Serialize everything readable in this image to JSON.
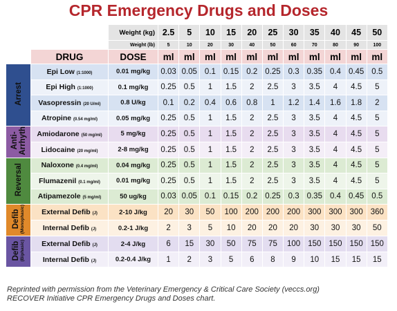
{
  "title": "CPR Emergency Drugs and Doses",
  "header": {
    "weight_kg_label": "Weight (kg)",
    "weight_kg": [
      "2.5",
      "5",
      "10",
      "15",
      "20",
      "25",
      "30",
      "35",
      "40",
      "45",
      "50"
    ],
    "weight_lb_label": "Weight (lb)",
    "weight_lb": [
      "5",
      "10",
      "20",
      "30",
      "40",
      "50",
      "60",
      "70",
      "80",
      "90",
      "100"
    ],
    "drug_label": "DRUG",
    "dose_label": "DOSE",
    "unit_labels": [
      "ml",
      "ml",
      "ml",
      "ml",
      "ml",
      "ml",
      "ml",
      "ml",
      "ml",
      "ml",
      "ml"
    ]
  },
  "groups": [
    {
      "label_lines": [
        "Arrest"
      ],
      "rows": [
        {
          "drug": "Epi Low",
          "conc": "(1:1000)",
          "dose": "0.01 mg/kg",
          "doses": [
            "0.03",
            "0.05",
            "0.1",
            "0.15",
            "0.2",
            "0.25",
            "0.3",
            "0.35",
            "0.4",
            "0.45",
            "0.5"
          ]
        },
        {
          "drug": "Epi High",
          "conc": "(1:1000)",
          "dose": "0.1 mg/kg",
          "doses": [
            "0.25",
            "0.5",
            "1",
            "1.5",
            "2",
            "2.5",
            "3",
            "3.5",
            "4",
            "4.5",
            "5"
          ]
        },
        {
          "drug": "Vasopressin",
          "conc": "(20 U/ml)",
          "dose": "0.8 U/kg",
          "doses": [
            "0.1",
            "0.2",
            "0.4",
            "0.6",
            "0.8",
            "1",
            "1.2",
            "1.4",
            "1.6",
            "1.8",
            "2"
          ]
        },
        {
          "drug": "Atropine",
          "conc": "(0.54 mg/ml)",
          "dose": "0.05 mg/kg",
          "doses": [
            "0.25",
            "0.5",
            "1",
            "1.5",
            "2",
            "2.5",
            "3",
            "3.5",
            "4",
            "4.5",
            "5"
          ]
        }
      ]
    },
    {
      "label_lines": [
        "Anti-",
        "Arrhyth"
      ],
      "rows": [
        {
          "drug": "Amiodarone",
          "conc": "(50 mg/ml)",
          "dose": "5 mg/kg",
          "doses": [
            "0.25",
            "0.5",
            "1",
            "1.5",
            "2",
            "2.5",
            "3",
            "3.5",
            "4",
            "4.5",
            "5"
          ]
        },
        {
          "drug": "Lidocaine",
          "conc": "(20 mg/ml)",
          "dose": "2-8 mg/kg",
          "doses": [
            "0.25",
            "0.5",
            "1",
            "1.5",
            "2",
            "2.5",
            "3",
            "3.5",
            "4",
            "4.5",
            "5"
          ]
        }
      ]
    },
    {
      "label_lines": [
        "Reversal"
      ],
      "rows": [
        {
          "drug": "Naloxone",
          "conc": "(0.4 mg/ml)",
          "dose": "0.04 mg/kg",
          "doses": [
            "0.25",
            "0.5",
            "1",
            "1.5",
            "2",
            "2.5",
            "3",
            "3.5",
            "4",
            "4.5",
            "5"
          ]
        },
        {
          "drug": "Flumazenil",
          "conc": "(0.1 mg/ml)",
          "dose": "0.01 mg/kg",
          "doses": [
            "0.25",
            "0.5",
            "1",
            "1.5",
            "2",
            "2.5",
            "3",
            "3.5",
            "4",
            "4.5",
            "5"
          ]
        },
        {
          "drug": "Atipamezole",
          "conc": "(5 mg/ml)",
          "dose": "50 ug/kg",
          "doses": [
            "0.03",
            "0.05",
            "0.1",
            "0.15",
            "0.2",
            "0.25",
            "0.3",
            "0.35",
            "0.4",
            "0.45",
            "0.5"
          ]
        }
      ]
    },
    {
      "label_lines": [
        "Defib"
      ],
      "sublabel": "(Monophasic)",
      "rows": [
        {
          "drug": "External Defib",
          "conc": "(J)",
          "dose": "2-10 J/kg",
          "doses": [
            "20",
            "30",
            "50",
            "100",
            "200",
            "200",
            "200",
            "300",
            "300",
            "300",
            "360"
          ]
        },
        {
          "drug": "Internal Defib",
          "conc": "(J)",
          "dose": "0.2-1 J/kg",
          "doses": [
            "2",
            "3",
            "5",
            "10",
            "20",
            "20",
            "20",
            "30",
            "30",
            "30",
            "50"
          ]
        }
      ]
    },
    {
      "label_lines": [
        "Defib"
      ],
      "sublabel": "(Biphasic)",
      "rows": [
        {
          "drug": "External Defib",
          "conc": "(J)",
          "dose": "2-4 J/kg",
          "doses": [
            "6",
            "15",
            "30",
            "50",
            "75",
            "75",
            "100",
            "150",
            "150",
            "150",
            "150"
          ]
        },
        {
          "drug": "Internal Defib",
          "conc": "(J)",
          "dose": "0.2-0.4 J/kg",
          "doses": [
            "1",
            "2",
            "3",
            "5",
            "6",
            "8",
            "9",
            "10",
            "15",
            "15",
            "15"
          ]
        }
      ]
    }
  ],
  "footer": [
    "Reprinted with permission from the Veterinary Emergency & Critical Care Society (veccs.org)",
    "RECOVER Initiative CPR Emergency Drugs and Doses chart."
  ]
}
